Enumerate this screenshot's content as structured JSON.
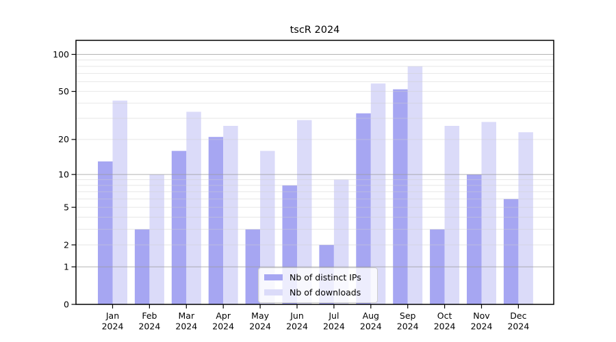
{
  "title": "tscR 2024",
  "chart_data": {
    "type": "bar",
    "title": "tscR 2024",
    "categories": [
      "Jan 2024",
      "Feb 2024",
      "Mar 2024",
      "Apr 2024",
      "May 2024",
      "Jun 2024",
      "Jul 2024",
      "Aug 2024",
      "Sep 2024",
      "Oct 2024",
      "Nov 2024",
      "Dec 2024"
    ],
    "series": [
      {
        "name": "Nb of distinct IPs",
        "color": "#a6a6f2",
        "values": [
          13,
          3,
          16,
          21,
          3,
          8,
          2,
          33,
          52,
          3,
          10,
          6
        ]
      },
      {
        "name": "Nb of downloads",
        "color": "#dbdbf9",
        "values": [
          42,
          10,
          34,
          26,
          16,
          29,
          9,
          58,
          80,
          26,
          28,
          23
        ]
      }
    ],
    "xlabel": "",
    "ylabel": "",
    "yscale": "log1p",
    "ylim": [
      0,
      130
    ],
    "yticks": [
      0,
      1,
      2,
      5,
      10,
      20,
      50,
      100
    ],
    "major_grid_values": [
      1,
      10,
      100
    ],
    "minor_grid_values": [
      2,
      3,
      4,
      5,
      6,
      7,
      8,
      9,
      20,
      30,
      40,
      50,
      60,
      70,
      80,
      90
    ],
    "grid": true,
    "legend_position": "lower center"
  },
  "colors": {
    "major_grid": "#9a9a9a",
    "minor_grid": "#cfcfcf",
    "axis": "#000000",
    "background": "#ffffff"
  }
}
